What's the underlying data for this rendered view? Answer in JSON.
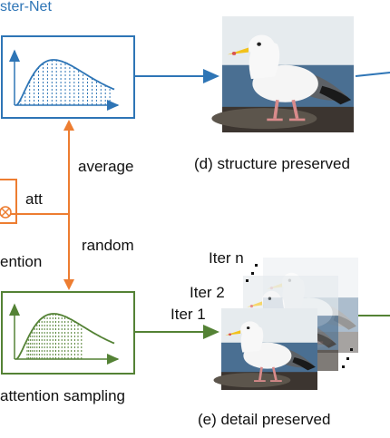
{
  "header": {
    "fragment_label": "ster-Net"
  },
  "labels": {
    "average": "average",
    "random": "random",
    "att": "att",
    "attention_fragment": "ention",
    "attention_sampling": "attention sampling",
    "structure_caption": "(d) structure preserved",
    "detail_caption": "(e) detail preserved",
    "iter_n": "Iter n",
    "iter_2": "Iter 2",
    "iter_1": "Iter 1"
  },
  "colors": {
    "blue": "#2e75b6",
    "orange": "#ed7d31",
    "green": "#548235",
    "text": "#111111"
  },
  "icons": {
    "multiply_circle": "otimes-icon",
    "distribution_curve": "skewed-distribution-curve-icon",
    "seagull_photo": "seagull-photo"
  }
}
